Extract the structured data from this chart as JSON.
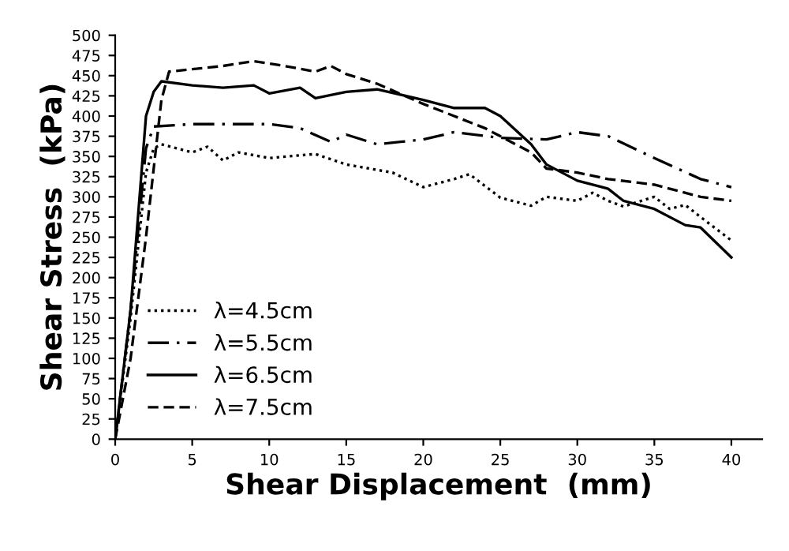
{
  "chart_data": {
    "type": "line",
    "xlabel": "Shear Displacement  (mm)",
    "ylabel": "Shear Stress  (kPa)",
    "xlim": [
      0,
      42
    ],
    "ylim": [
      0,
      500
    ],
    "xticks": [
      0,
      5,
      10,
      15,
      20,
      25,
      30,
      35,
      40
    ],
    "yticks": [
      0,
      25,
      50,
      75,
      100,
      125,
      150,
      175,
      200,
      225,
      250,
      275,
      300,
      325,
      350,
      375,
      400,
      425,
      450,
      475,
      500
    ],
    "grid": false,
    "legend": "bottom left",
    "marker": "none",
    "series": [
      {
        "name": "λ=4.5cm",
        "color": "#000000",
        "line_style": "dotted",
        "x": [
          0,
          1,
          2,
          2.5,
          3,
          5,
          6,
          7,
          8,
          10,
          13,
          15,
          18,
          20,
          22,
          23,
          25,
          27,
          28,
          30,
          31,
          32,
          33,
          35,
          36,
          37,
          38,
          40
        ],
        "values": [
          0,
          150,
          330,
          360,
          365,
          355,
          362,
          345,
          355,
          348,
          353,
          340,
          330,
          312,
          322,
          328,
          299,
          289,
          300,
          295,
          305,
          295,
          288,
          300,
          285,
          290,
          275,
          246
        ]
      },
      {
        "name": "λ=5.5cm",
        "color": "#000000",
        "line_style": "dashdot",
        "x": [
          0,
          1,
          2,
          2.5,
          5,
          10,
          12,
          14,
          15,
          17,
          20,
          22,
          25,
          28,
          30,
          32,
          35,
          38,
          40
        ],
        "values": [
          0,
          160,
          360,
          387,
          390,
          390,
          385,
          368,
          377,
          365,
          371,
          380,
          373,
          371,
          380,
          375,
          348,
          322,
          312
        ]
      },
      {
        "name": "λ=6.5cm",
        "color": "#000000",
        "line_style": "solid",
        "x": [
          0,
          1,
          2,
          2.5,
          3,
          5,
          7,
          9,
          10,
          12,
          13,
          15,
          17,
          20,
          22,
          24,
          25,
          27,
          28,
          30,
          32,
          33,
          35,
          37,
          38,
          40
        ],
        "values": [
          0,
          160,
          400,
          430,
          443,
          438,
          435,
          438,
          428,
          435,
          422,
          430,
          433,
          420,
          410,
          410,
          400,
          365,
          340,
          320,
          310,
          295,
          285,
          265,
          262,
          225
        ]
      },
      {
        "name": "λ=7.5cm",
        "color": "#000000",
        "line_style": "dashed",
        "x": [
          0,
          1,
          2,
          3,
          3.5,
          5,
          7,
          9,
          11,
          13,
          14,
          15,
          17,
          20,
          22,
          24,
          25,
          27,
          28,
          30,
          32,
          35,
          38,
          40
        ],
        "values": [
          0,
          100,
          250,
          420,
          455,
          458,
          462,
          468,
          462,
          455,
          462,
          452,
          440,
          415,
          400,
          385,
          375,
          355,
          335,
          330,
          322,
          315,
          300,
          295
        ]
      }
    ]
  }
}
